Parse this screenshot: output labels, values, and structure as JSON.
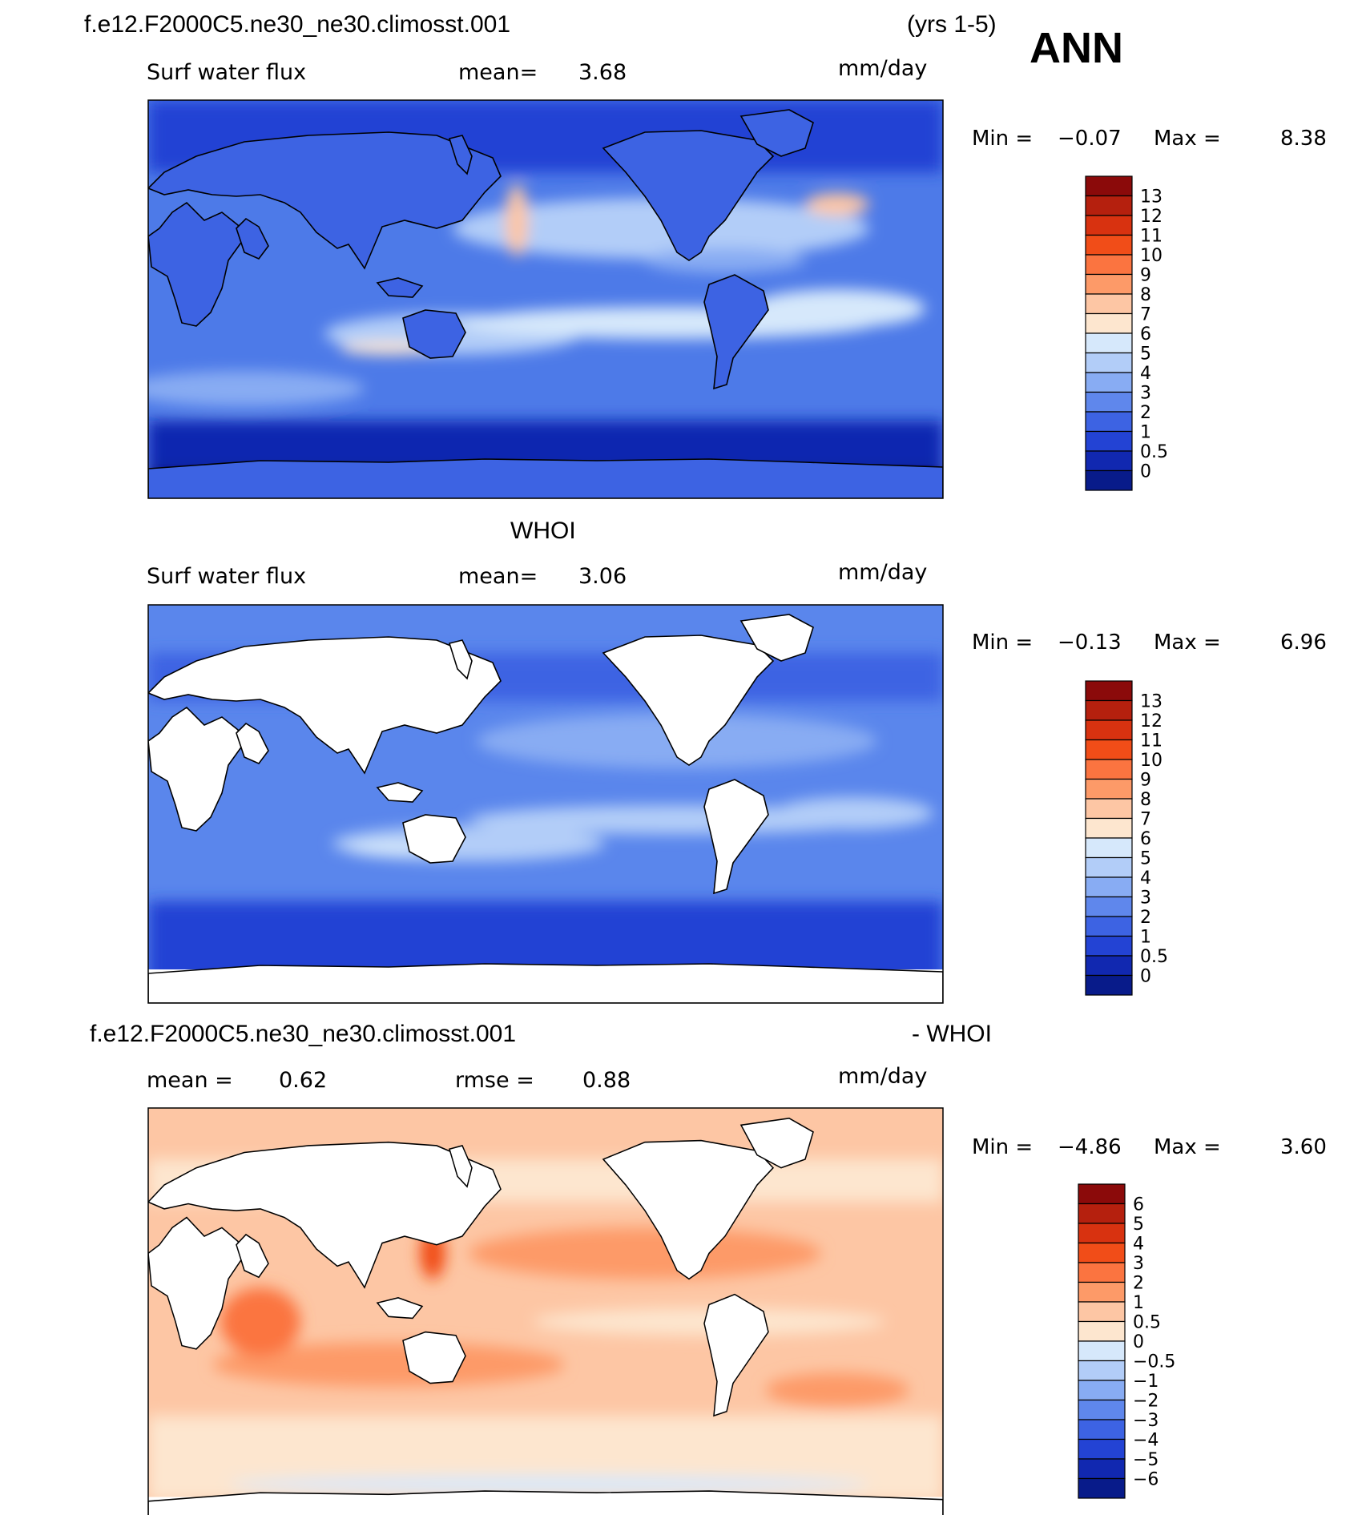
{
  "header": {
    "case_name": "f.e12.F2000C5.ne30_ne30.climosst.001",
    "years": "(yrs 1-5)",
    "season": "ANN"
  },
  "panels": [
    {
      "id": "model",
      "title": "",
      "variable": "Surf water flux",
      "stat1_label": "mean=",
      "stat1_value": "3.68",
      "stat2_label": "",
      "stat2_value": "",
      "units": "mm/day",
      "min_label": "Min =",
      "min_value": "−0.07",
      "max_label": "Max =",
      "max_value": "8.38",
      "colorbar": {
        "labels": [
          "13",
          "12",
          "11",
          "10",
          "9",
          "8",
          "7",
          "6",
          "5",
          "4",
          "3",
          "2",
          "1",
          "0.5",
          "0"
        ],
        "colors": [
          "#8b0a0a",
          "#b5200e",
          "#d83210",
          "#f14d18",
          "#fb7440",
          "#fd9a68",
          "#fdc6a4",
          "#fde6cf",
          "#d6e8fb",
          "#b2cdf8",
          "#88acf3",
          "#5f87ec",
          "#3d63e3",
          "#2343d4",
          "#1128b0",
          "#081b8a"
        ]
      }
    },
    {
      "id": "obs",
      "title": "WHOI",
      "variable": "Surf water flux",
      "stat1_label": "mean=",
      "stat1_value": "3.06",
      "stat2_label": "",
      "stat2_value": "",
      "units": "mm/day",
      "min_label": "Min =",
      "min_value": "−0.13",
      "max_label": "Max =",
      "max_value": "6.96",
      "colorbar": {
        "labels": [
          "13",
          "12",
          "11",
          "10",
          "9",
          "8",
          "7",
          "6",
          "5",
          "4",
          "3",
          "2",
          "1",
          "0.5",
          "0"
        ],
        "colors": [
          "#8b0a0a",
          "#b5200e",
          "#d83210",
          "#f14d18",
          "#fb7440",
          "#fd9a68",
          "#fdc6a4",
          "#fde6cf",
          "#d6e8fb",
          "#b2cdf8",
          "#88acf3",
          "#5f87ec",
          "#3d63e3",
          "#2343d4",
          "#1128b0",
          "#081b8a"
        ]
      }
    },
    {
      "id": "diff",
      "title_left": "f.e12.F2000C5.ne30_ne30.climosst.001",
      "title_right": "- WHOI",
      "variable": "",
      "stat1_label": "mean =",
      "stat1_value": "0.62",
      "stat2_label": "rmse =",
      "stat2_value": "0.88",
      "units": "mm/day",
      "min_label": "Min =",
      "min_value": "−4.86",
      "max_label": "Max =",
      "max_value": "3.60",
      "colorbar": {
        "labels": [
          "6",
          "5",
          "4",
          "3",
          "2",
          "1",
          "0.5",
          "0",
          "−0.5",
          "−1",
          "−2",
          "−3",
          "−4",
          "−5",
          "−6"
        ],
        "colors": [
          "#8b0a0a",
          "#b5200e",
          "#d83210",
          "#f14d18",
          "#fb7440",
          "#fd9a68",
          "#fdc6a4",
          "#fde6cf",
          "#d6e8fb",
          "#b2cdf8",
          "#88acf3",
          "#5f87ec",
          "#3d63e3",
          "#2343d4",
          "#1128b0",
          "#081b8a"
        ]
      }
    }
  ],
  "map_style": {
    "model_ocean_base": "#4d7ae8",
    "obs_ocean_base": "#5a86ec",
    "diff_ocean_base": "#fdc6a4",
    "land_fill": "#ffffff",
    "coast_color": "#000000"
  }
}
